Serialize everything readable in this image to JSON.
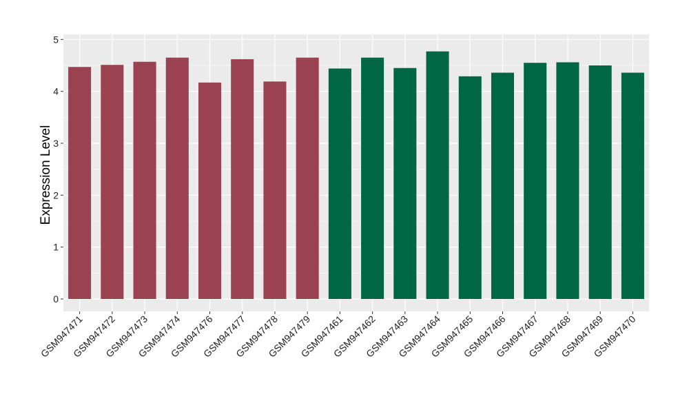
{
  "chart_data": {
    "type": "bar",
    "title": "",
    "xlabel": "",
    "ylabel": "Expression Level",
    "ylim": [
      0,
      5
    ],
    "yticks": [
      0,
      1,
      2,
      3,
      4,
      5
    ],
    "grid": true,
    "categories": [
      "GSM947471",
      "GSM947472",
      "GSM947473",
      "GSM947474",
      "GSM947476",
      "GSM947477",
      "GSM947478",
      "GSM947479",
      "GSM947461",
      "GSM947462",
      "GSM947463",
      "GSM947464",
      "GSM947465",
      "GSM947466",
      "GSM947467",
      "GSM947468",
      "GSM947469",
      "GSM947470"
    ],
    "values": [
      4.47,
      4.51,
      4.57,
      4.65,
      4.17,
      4.62,
      4.19,
      4.65,
      4.44,
      4.65,
      4.45,
      4.77,
      4.29,
      4.36,
      4.55,
      4.56,
      4.5,
      4.36
    ],
    "bar_colors": [
      "#9a4250",
      "#9a4250",
      "#9a4250",
      "#9a4250",
      "#9a4250",
      "#9a4250",
      "#9a4250",
      "#9a4250",
      "#006644",
      "#006644",
      "#006644",
      "#006644",
      "#006644",
      "#006644",
      "#006644",
      "#006644",
      "#006644",
      "#006644"
    ],
    "panel_background": "#ebebeb"
  }
}
